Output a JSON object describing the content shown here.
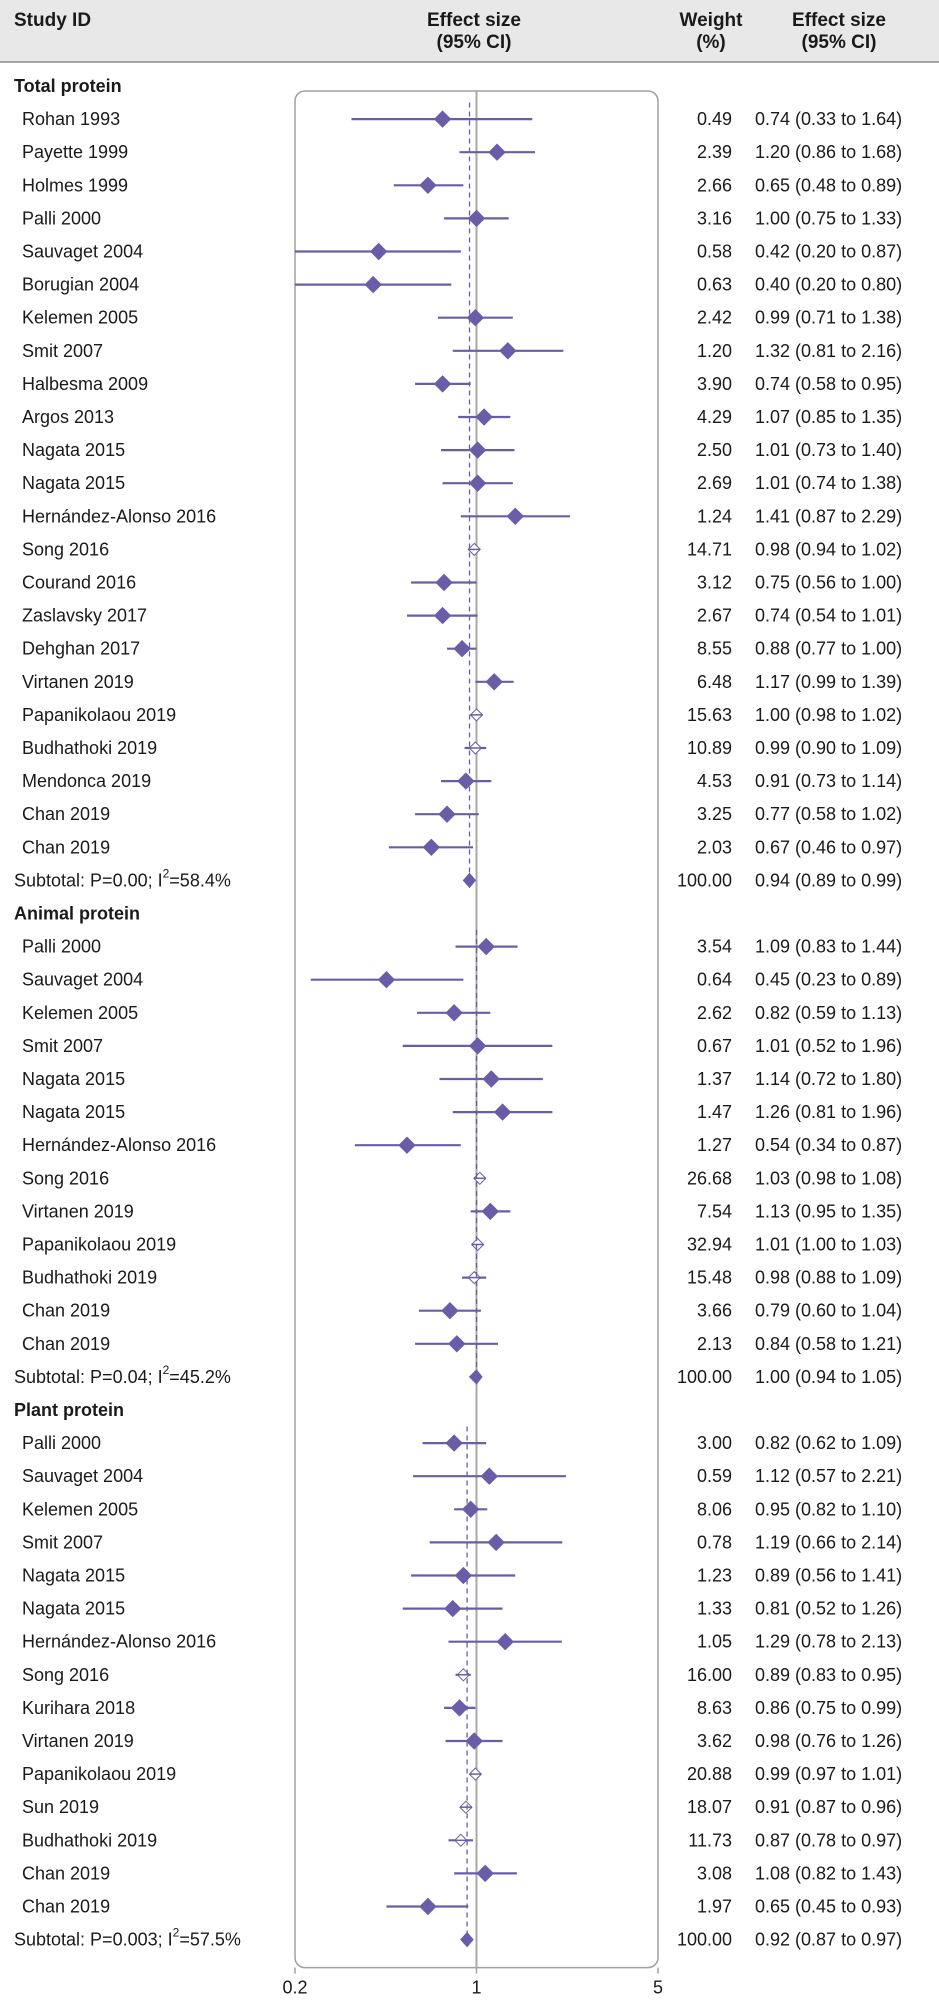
{
  "header": {
    "study_label": "Study ID",
    "effect_line1": "Effect size",
    "effect_line2": "(95% CI)",
    "weight_line1": "Weight",
    "weight_line2": "(%)",
    "ci_line1": "Effect size",
    "ci_line2": "(95% CI)"
  },
  "colors": {
    "marker": "#6b5ca8",
    "header_bg": "#e8e8e8",
    "panel_border": "#a0a0a0",
    "null_line": "#a8a8a8",
    "pooled_line": "#6b5ca8"
  },
  "chart_data": {
    "type": "forest",
    "x_scale": "log",
    "xlim": [
      0.2,
      5
    ],
    "x_ticks": [
      0.2,
      1,
      5
    ],
    "tick_labels": [
      "0.2",
      "1",
      "5"
    ],
    "null_value": 1,
    "columns": [
      "Study ID",
      "Effect size (95% CI)",
      "Weight (%)",
      "Effect size (95% CI)"
    ],
    "groups": [
      {
        "name": "Total protein",
        "studies": [
          {
            "label": "Rohan 1993",
            "est": 0.74,
            "lo": 0.33,
            "hi": 1.64,
            "weight": "0.49",
            "ci_text": "0.74 (0.33 to 1.64)"
          },
          {
            "label": "Payette 1999",
            "est": 1.2,
            "lo": 0.86,
            "hi": 1.68,
            "weight": "2.39",
            "ci_text": "1.20 (0.86 to 1.68)"
          },
          {
            "label": "Holmes 1999",
            "est": 0.65,
            "lo": 0.48,
            "hi": 0.89,
            "weight": "2.66",
            "ci_text": "0.65 (0.48 to 0.89)"
          },
          {
            "label": "Palli 2000",
            "est": 1.0,
            "lo": 0.75,
            "hi": 1.33,
            "weight": "3.16",
            "ci_text": "1.00 (0.75 to 1.33)"
          },
          {
            "label": "Sauvaget 2004",
            "est": 0.42,
            "lo": 0.2,
            "hi": 0.87,
            "weight": "0.58",
            "ci_text": "0.42 (0.20 to 0.87)"
          },
          {
            "label": "Borugian 2004",
            "est": 0.4,
            "lo": 0.2,
            "hi": 0.8,
            "weight": "0.63",
            "ci_text": "0.40 (0.20 to 0.80)"
          },
          {
            "label": "Kelemen 2005",
            "est": 0.99,
            "lo": 0.71,
            "hi": 1.38,
            "weight": "2.42",
            "ci_text": "0.99 (0.71 to 1.38)"
          },
          {
            "label": "Smit 2007",
            "est": 1.32,
            "lo": 0.81,
            "hi": 2.16,
            "weight": "1.20",
            "ci_text": "1.32 (0.81 to 2.16)"
          },
          {
            "label": "Halbesma 2009",
            "est": 0.74,
            "lo": 0.58,
            "hi": 0.95,
            "weight": "3.90",
            "ci_text": "0.74 (0.58 to 0.95)"
          },
          {
            "label": "Argos 2013",
            "est": 1.07,
            "lo": 0.85,
            "hi": 1.35,
            "weight": "4.29",
            "ci_text": "1.07 (0.85 to 1.35)"
          },
          {
            "label": "Nagata 2015",
            "est": 1.01,
            "lo": 0.73,
            "hi": 1.4,
            "weight": "2.50",
            "ci_text": "1.01 (0.73 to 1.40)"
          },
          {
            "label": "Nagata 2015",
            "est": 1.01,
            "lo": 0.74,
            "hi": 1.38,
            "weight": "2.69",
            "ci_text": "1.01 (0.74 to 1.38)"
          },
          {
            "label": "Hernández-Alonso 2016",
            "est": 1.41,
            "lo": 0.87,
            "hi": 2.29,
            "weight": "1.24",
            "ci_text": "1.41 (0.87 to 2.29)"
          },
          {
            "label": "Song 2016",
            "est": 0.98,
            "lo": 0.94,
            "hi": 1.02,
            "weight": "14.71",
            "ci_text": "0.98 (0.94 to 1.02)"
          },
          {
            "label": "Courand 2016",
            "est": 0.75,
            "lo": 0.56,
            "hi": 1.0,
            "weight": "3.12",
            "ci_text": "0.75 (0.56 to 1.00)"
          },
          {
            "label": "Zaslavsky 2017",
            "est": 0.74,
            "lo": 0.54,
            "hi": 1.01,
            "weight": "2.67",
            "ci_text": "0.74 (0.54 to 1.01)"
          },
          {
            "label": "Dehghan 2017",
            "est": 0.88,
            "lo": 0.77,
            "hi": 1.0,
            "weight": "8.55",
            "ci_text": "0.88 (0.77 to 1.00)"
          },
          {
            "label": "Virtanen  2019",
            "est": 1.17,
            "lo": 0.99,
            "hi": 1.39,
            "weight": "6.48",
            "ci_text": "1.17 (0.99 to 1.39)"
          },
          {
            "label": "Papanikolaou 2019",
            "est": 1.0,
            "lo": 0.98,
            "hi": 1.02,
            "weight": "15.63",
            "ci_text": "1.00 (0.98 to 1.02)"
          },
          {
            "label": "Budhathoki 2019",
            "est": 0.99,
            "lo": 0.9,
            "hi": 1.09,
            "weight": "10.89",
            "ci_text": "0.99 (0.90 to 1.09)"
          },
          {
            "label": "Mendonca 2019",
            "est": 0.91,
            "lo": 0.73,
            "hi": 1.14,
            "weight": "4.53",
            "ci_text": "0.91 (0.73 to 1.14)"
          },
          {
            "label": "Chan 2019",
            "est": 0.77,
            "lo": 0.58,
            "hi": 1.02,
            "weight": "3.25",
            "ci_text": "0.77 (0.58 to 1.02)"
          },
          {
            "label": "Chan 2019",
            "est": 0.67,
            "lo": 0.46,
            "hi": 0.97,
            "weight": "2.03",
            "ci_text": "0.67 (0.46 to 0.97)"
          }
        ],
        "subtotal": {
          "label_prefix": "Subtotal: P=0.00; I",
          "i2": "58.4%",
          "est": 0.94,
          "lo": 0.89,
          "hi": 0.99,
          "weight": "100.00",
          "ci_text": "0.94 (0.89 to 0.99)"
        }
      },
      {
        "name": "Animal protein",
        "studies": [
          {
            "label": "Palli 2000",
            "est": 1.09,
            "lo": 0.83,
            "hi": 1.44,
            "weight": "3.54",
            "ci_text": "1.09 (0.83 to 1.44)"
          },
          {
            "label": "Sauvaget 2004",
            "est": 0.45,
            "lo": 0.23,
            "hi": 0.89,
            "weight": "0.64",
            "ci_text": "0.45 (0.23 to 0.89)"
          },
          {
            "label": "Kelemen 2005",
            "est": 0.82,
            "lo": 0.59,
            "hi": 1.13,
            "weight": "2.62",
            "ci_text": "0.82 (0.59 to 1.13)"
          },
          {
            "label": "Smit 2007",
            "est": 1.01,
            "lo": 0.52,
            "hi": 1.96,
            "weight": "0.67",
            "ci_text": "1.01 (0.52 to 1.96)"
          },
          {
            "label": "Nagata 2015",
            "est": 1.14,
            "lo": 0.72,
            "hi": 1.8,
            "weight": "1.37",
            "ci_text": "1.14 (0.72 to 1.80)"
          },
          {
            "label": "Nagata 2015",
            "est": 1.26,
            "lo": 0.81,
            "hi": 1.96,
            "weight": "1.47",
            "ci_text": "1.26 (0.81 to 1.96)"
          },
          {
            "label": "Hernández-Alonso 2016",
            "est": 0.54,
            "lo": 0.34,
            "hi": 0.87,
            "weight": "1.27",
            "ci_text": "0.54 (0.34 to 0.87)"
          },
          {
            "label": "Song 2016",
            "est": 1.03,
            "lo": 0.98,
            "hi": 1.08,
            "weight": "26.68",
            "ci_text": "1.03 (0.98 to 1.08)"
          },
          {
            "label": "Virtanen  2019",
            "est": 1.13,
            "lo": 0.95,
            "hi": 1.35,
            "weight": "7.54",
            "ci_text": "1.13 (0.95 to 1.35)"
          },
          {
            "label": "Papanikolaou 2019",
            "est": 1.01,
            "lo": 1.0,
            "hi": 1.03,
            "weight": "32.94",
            "ci_text": "1.01 (1.00 to 1.03)"
          },
          {
            "label": "Budhathoki 2019",
            "est": 0.98,
            "lo": 0.88,
            "hi": 1.09,
            "weight": "15.48",
            "ci_text": "0.98 (0.88 to 1.09)"
          },
          {
            "label": "Chan 2019",
            "est": 0.79,
            "lo": 0.6,
            "hi": 1.04,
            "weight": "3.66",
            "ci_text": "0.79 (0.60 to 1.04)"
          },
          {
            "label": "Chan 2019",
            "est": 0.84,
            "lo": 0.58,
            "hi": 1.21,
            "weight": "2.13",
            "ci_text": "0.84 (0.58 to 1.21)"
          }
        ],
        "subtotal": {
          "label_prefix": "Subtotal: P=0.04; I",
          "i2": "45.2%",
          "est": 1.0,
          "lo": 0.94,
          "hi": 1.05,
          "weight": "100.00",
          "ci_text": "1.00 (0.94 to 1.05)"
        }
      },
      {
        "name": "Plant protein",
        "studies": [
          {
            "label": "Palli 2000",
            "est": 0.82,
            "lo": 0.62,
            "hi": 1.09,
            "weight": "3.00",
            "ci_text": "0.82 (0.62 to 1.09)"
          },
          {
            "label": "Sauvaget 2004",
            "est": 1.12,
            "lo": 0.57,
            "hi": 2.21,
            "weight": "0.59",
            "ci_text": "1.12 (0.57 to 2.21)"
          },
          {
            "label": "Kelemen 2005",
            "est": 0.95,
            "lo": 0.82,
            "hi": 1.1,
            "weight": "8.06",
            "ci_text": "0.95 (0.82 to 1.10)"
          },
          {
            "label": "Smit 2007",
            "est": 1.19,
            "lo": 0.66,
            "hi": 2.14,
            "weight": "0.78",
            "ci_text": "1.19 (0.66 to 2.14)"
          },
          {
            "label": "Nagata 2015",
            "est": 0.89,
            "lo": 0.56,
            "hi": 1.41,
            "weight": "1.23",
            "ci_text": "0.89 (0.56 to 1.41)"
          },
          {
            "label": "Nagata 2015",
            "est": 0.81,
            "lo": 0.52,
            "hi": 1.26,
            "weight": "1.33",
            "ci_text": "0.81 (0.52 to 1.26)"
          },
          {
            "label": "Hernández-Alonso 2016",
            "est": 1.29,
            "lo": 0.78,
            "hi": 2.13,
            "weight": "1.05",
            "ci_text": "1.29 (0.78 to 2.13)"
          },
          {
            "label": "Song 2016",
            "est": 0.89,
            "lo": 0.83,
            "hi": 0.95,
            "weight": "16.00",
            "ci_text": "0.89 (0.83 to 0.95)"
          },
          {
            "label": "Kurihara 2018",
            "est": 0.86,
            "lo": 0.75,
            "hi": 0.99,
            "weight": "8.63",
            "ci_text": "0.86 (0.75 to 0.99)"
          },
          {
            "label": "Virtanen  2019",
            "est": 0.98,
            "lo": 0.76,
            "hi": 1.26,
            "weight": "3.62",
            "ci_text": "0.98 (0.76 to 1.26)"
          },
          {
            "label": "Papanikolaou 2019",
            "est": 0.99,
            "lo": 0.97,
            "hi": 1.01,
            "weight": "20.88",
            "ci_text": "0.99 (0.97 to 1.01)"
          },
          {
            "label": "Sun 2019",
            "est": 0.91,
            "lo": 0.87,
            "hi": 0.96,
            "weight": "18.07",
            "ci_text": "0.91 (0.87 to 0.96)"
          },
          {
            "label": "Budhathoki 2019",
            "est": 0.87,
            "lo": 0.78,
            "hi": 0.97,
            "weight": "11.73",
            "ci_text": "0.87 (0.78 to 0.97)"
          },
          {
            "label": "Chan 2019",
            "est": 1.08,
            "lo": 0.82,
            "hi": 1.43,
            "weight": "3.08",
            "ci_text": "1.08 (0.82 to 1.43)"
          },
          {
            "label": "Chan 2019",
            "est": 0.65,
            "lo": 0.45,
            "hi": 0.93,
            "weight": "1.97",
            "ci_text": "0.65 (0.45 to 0.93)"
          }
        ],
        "subtotal": {
          "label_prefix": "Subtotal: P=0.003; I",
          "i2": "57.5%",
          "est": 0.92,
          "lo": 0.87,
          "hi": 0.97,
          "weight": "100.00",
          "ci_text": "0.92 (0.87 to 0.97)"
        }
      }
    ]
  }
}
